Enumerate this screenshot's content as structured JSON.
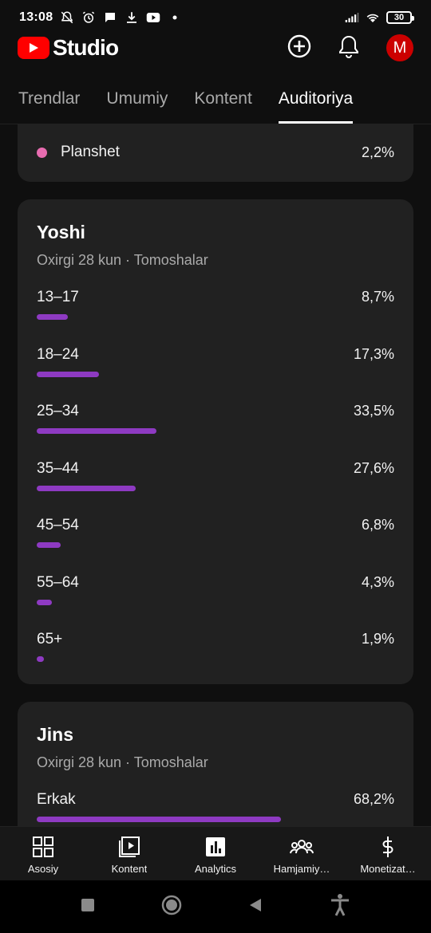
{
  "status_bar": {
    "time": "13:08",
    "battery": "30"
  },
  "app": {
    "logo_text": "Studio",
    "avatar_letter": "M"
  },
  "tabs": [
    {
      "label": "Trendlar",
      "active": false
    },
    {
      "label": "Umumiy",
      "active": false
    },
    {
      "label": "Kontent",
      "active": false
    },
    {
      "label": "Auditoriya",
      "active": true
    }
  ],
  "device_card": {
    "label": "Planshet",
    "value": "2,2%",
    "dot_color": "#e86cb0"
  },
  "age_card": {
    "title": "Yoshi",
    "subtitle": "Oxirgi 28 kun · Tomoshalar",
    "bar_color": "#8e3ac2",
    "rows": [
      {
        "label": "13–17",
        "value": "8,7%",
        "percent": 8.7
      },
      {
        "label": "18–24",
        "value": "17,3%",
        "percent": 17.3
      },
      {
        "label": "25–34",
        "value": "33,5%",
        "percent": 33.5
      },
      {
        "label": "35–44",
        "value": "27,6%",
        "percent": 27.6
      },
      {
        "label": "45–54",
        "value": "6,8%",
        "percent": 6.8
      },
      {
        "label": "55–64",
        "value": "4,3%",
        "percent": 4.3
      },
      {
        "label": "65+",
        "value": "1,9%",
        "percent": 1.9
      }
    ]
  },
  "gender_card": {
    "title": "Jins",
    "subtitle": "Oxirgi 28 kun · Tomoshalar",
    "rows": [
      {
        "label": "Erkak",
        "value": "68,2%",
        "percent": 68.2
      }
    ]
  },
  "bottom_nav": [
    {
      "label": "Asosiy",
      "icon": "dashboard-icon"
    },
    {
      "label": "Kontent",
      "icon": "content-icon"
    },
    {
      "label": "Analytics",
      "icon": "analytics-icon",
      "active": true
    },
    {
      "label": "Hamjamiy…",
      "icon": "community-icon"
    },
    {
      "label": "Monetizat…",
      "icon": "monetization-icon"
    }
  ]
}
